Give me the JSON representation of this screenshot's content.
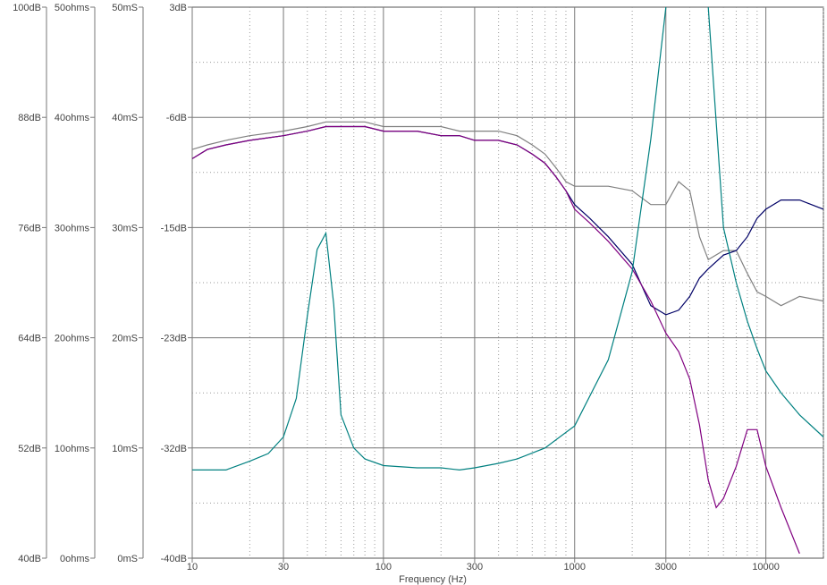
{
  "chart_data": {
    "type": "line",
    "xlabel": "Frequency (Hz)",
    "x_scale": "log",
    "xlim": [
      10,
      20000
    ],
    "x_ticks": [
      {
        "value": 10,
        "label": "10"
      },
      {
        "value": 30,
        "label": "30"
      },
      {
        "value": 100,
        "label": "100"
      },
      {
        "value": 300,
        "label": "300"
      },
      {
        "value": 1000,
        "label": "1000"
      },
      {
        "value": 3000,
        "label": "3000"
      },
      {
        "value": 10000,
        "label": "10000"
      }
    ],
    "grid": true,
    "axes": [
      {
        "unit": "dB",
        "range": [
          40,
          100
        ],
        "ticks": [
          "100dB",
          "88dB",
          "76dB",
          "64dB",
          "52dB",
          "40dB"
        ]
      },
      {
        "unit": "ohms",
        "range": [
          0,
          50
        ],
        "ticks": [
          "50ohms",
          "40ohms",
          "30ohms",
          "20ohms",
          "10ohms",
          "0ohms"
        ]
      },
      {
        "unit": "mS",
        "range": [
          0,
          50
        ],
        "ticks": [
          "50mS",
          "40mS",
          "30mS",
          "20mS",
          "10mS",
          "0mS"
        ]
      },
      {
        "unit": "dB",
        "range": [
          -40,
          3
        ],
        "ticks": [
          "3dB",
          "-6dB",
          "-15dB",
          "-23dB",
          "-32dB",
          "-40dB"
        ]
      }
    ],
    "series": [
      {
        "axis": 0,
        "color": "#808080",
        "x": [
          10,
          12,
          15,
          20,
          30,
          40,
          50,
          60,
          80,
          100,
          150,
          200,
          250,
          300,
          400,
          500,
          600,
          700,
          800,
          900,
          1000,
          1500,
          2000,
          2500,
          3000,
          3500,
          4000,
          4500,
          5000,
          6000,
          7000,
          8000,
          9000,
          10000,
          12000,
          15000,
          20000
        ],
        "y": [
          84.5,
          85,
          85.5,
          86,
          86.5,
          87,
          87.5,
          87.5,
          87.5,
          87,
          87,
          87,
          86.5,
          86.5,
          86.5,
          86,
          85,
          84,
          82.5,
          81,
          80.5,
          80.5,
          80,
          78.5,
          78.5,
          81,
          80,
          75,
          72.5,
          73.5,
          73.5,
          71,
          69,
          68.5,
          67.5,
          68.5,
          68
        ]
      },
      {
        "axis": 0,
        "color": "#000066",
        "x": [
          10,
          12,
          15,
          20,
          30,
          40,
          50,
          60,
          80,
          100,
          150,
          200,
          250,
          300,
          400,
          500,
          600,
          700,
          800,
          900,
          1000,
          1200,
          1500,
          2000,
          2500,
          3000,
          3500,
          4000,
          4500,
          5000,
          6000,
          7000,
          8000,
          9000,
          10000,
          12000,
          15000,
          20000
        ],
        "y": [
          83.5,
          84.5,
          85,
          85.5,
          86,
          86.5,
          87,
          87,
          87,
          86.5,
          86.5,
          86,
          86,
          85.5,
          85.5,
          85,
          84,
          83,
          81.5,
          80,
          78.5,
          77,
          75,
          72,
          67.5,
          66.5,
          67,
          68.5,
          70.5,
          71.5,
          73,
          73.5,
          75,
          77,
          78,
          79,
          79,
          78
        ]
      },
      {
        "axis": 0,
        "color": "#800080",
        "x": [
          10,
          12,
          15,
          20,
          30,
          40,
          50,
          60,
          80,
          100,
          150,
          200,
          250,
          300,
          400,
          500,
          600,
          700,
          800,
          900,
          1000,
          1200,
          1500,
          2000,
          2500,
          3000,
          3500,
          4000,
          4500,
          5000,
          5500,
          6000,
          7000,
          8000,
          9000,
          10000,
          12000,
          15000
        ],
        "y": [
          83.5,
          84.5,
          85,
          85.5,
          86,
          86.5,
          87,
          87,
          87,
          86.5,
          86.5,
          86,
          86,
          85.5,
          85.5,
          85,
          84,
          83,
          81.5,
          80,
          78,
          76.5,
          74.5,
          71.5,
          68,
          64.5,
          62.5,
          59.5,
          54.5,
          48.5,
          45.5,
          46.5,
          50,
          54,
          54,
          50,
          45.5,
          40.5
        ]
      },
      {
        "axis": 1,
        "color": "#008080",
        "x": [
          10,
          15,
          20,
          25,
          30,
          35,
          40,
          45,
          50,
          55,
          60,
          70,
          80,
          100,
          150,
          200,
          250,
          300,
          400,
          500,
          700,
          1000,
          1500,
          2000,
          2500,
          3000
        ],
        "y": [
          8,
          8,
          8.8,
          9.5,
          11,
          14.5,
          22,
          28,
          29.5,
          23,
          13,
          10,
          9,
          8.4,
          8.2,
          8.2,
          8,
          8.2,
          8.6,
          9,
          10,
          12,
          18,
          26,
          38,
          50
        ]
      },
      {
        "axis": 1,
        "color": "#008080",
        "x": [
          5000,
          6000,
          7000,
          8000,
          9000,
          10000,
          12000,
          15000,
          20000
        ],
        "y": [
          50,
          30,
          25,
          21.5,
          19,
          17,
          15,
          13,
          11
        ]
      }
    ]
  }
}
